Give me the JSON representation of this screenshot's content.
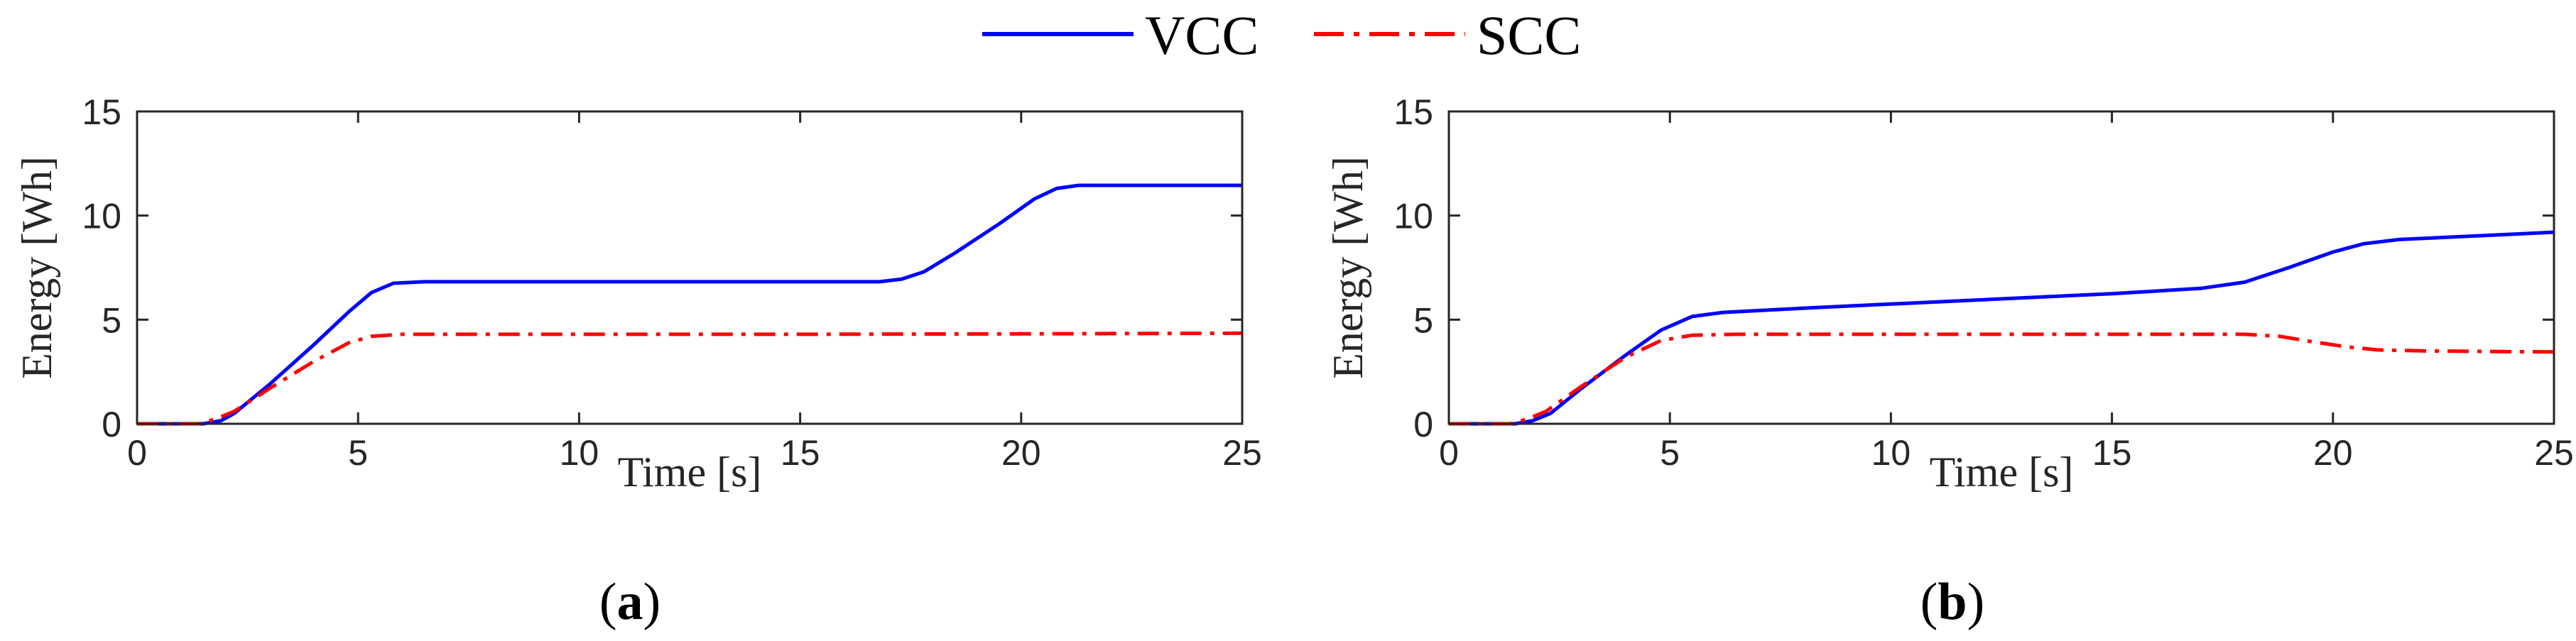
{
  "legend": {
    "entries": [
      {
        "name": "VCC",
        "color": "#0000ff",
        "style": "solid"
      },
      {
        "name": "SCC",
        "color": "#ff0000",
        "style": "dashdot"
      }
    ]
  },
  "captions": {
    "a_open": "(",
    "a_letter": "a",
    "a_close": ")",
    "b_open": "(",
    "b_letter": "b",
    "b_close": ")"
  },
  "chart_data": [
    {
      "type": "line",
      "panel": "a",
      "title": "",
      "xlabel": "Time [s]",
      "ylabel": "Energy [Wh]",
      "xlim": [
        0,
        25
      ],
      "ylim": [
        0,
        15
      ],
      "xticks": [
        0,
        5,
        10,
        15,
        20,
        25
      ],
      "yticks": [
        0,
        5,
        10,
        15
      ],
      "grid": false,
      "series": [
        {
          "name": "VCC",
          "color": "#0000ff",
          "style": "solid",
          "points": [
            [
              0,
              0
            ],
            [
              1.5,
              0
            ],
            [
              1.9,
              0.15
            ],
            [
              2.2,
              0.5
            ],
            [
              3,
              1.9
            ],
            [
              4,
              3.8
            ],
            [
              4.8,
              5.4
            ],
            [
              5.3,
              6.3
            ],
            [
              5.8,
              6.75
            ],
            [
              6.5,
              6.82
            ],
            [
              10,
              6.82
            ],
            [
              15,
              6.82
            ],
            [
              16.8,
              6.82
            ],
            [
              17.3,
              6.95
            ],
            [
              17.8,
              7.3
            ],
            [
              18.5,
              8.2
            ],
            [
              19.5,
              9.6
            ],
            [
              20.3,
              10.8
            ],
            [
              20.8,
              11.3
            ],
            [
              21.3,
              11.45
            ],
            [
              22,
              11.45
            ],
            [
              25,
              11.45
            ]
          ]
        },
        {
          "name": "SCC",
          "color": "#ff0000",
          "style": "dashdot",
          "points": [
            [
              0,
              0
            ],
            [
              1.4,
              0
            ],
            [
              1.8,
              0.25
            ],
            [
              2.2,
              0.6
            ],
            [
              3,
              1.7
            ],
            [
              4,
              3.0
            ],
            [
              4.8,
              3.9
            ],
            [
              5.3,
              4.2
            ],
            [
              6,
              4.3
            ],
            [
              10,
              4.3
            ],
            [
              15,
              4.3
            ],
            [
              20,
              4.32
            ],
            [
              25,
              4.35
            ]
          ]
        }
      ]
    },
    {
      "type": "line",
      "panel": "b",
      "title": "",
      "xlabel": "Time [s]",
      "ylabel": "Energy [Wh]",
      "xlim": [
        0,
        25
      ],
      "ylim": [
        0,
        15
      ],
      "xticks": [
        0,
        5,
        10,
        15,
        20,
        25
      ],
      "yticks": [
        0,
        5,
        10,
        15
      ],
      "grid": false,
      "series": [
        {
          "name": "VCC",
          "color": "#0000ff",
          "style": "solid",
          "points": [
            [
              0,
              0
            ],
            [
              1.5,
              0
            ],
            [
              1.9,
              0.15
            ],
            [
              2.3,
              0.5
            ],
            [
              3,
              1.7
            ],
            [
              4,
              3.3
            ],
            [
              4.8,
              4.5
            ],
            [
              5.5,
              5.15
            ],
            [
              6.2,
              5.35
            ],
            [
              8,
              5.55
            ],
            [
              10,
              5.75
            ],
            [
              12,
              5.95
            ],
            [
              15,
              6.25
            ],
            [
              17,
              6.5
            ],
            [
              18,
              6.8
            ],
            [
              19,
              7.5
            ],
            [
              20,
              8.25
            ],
            [
              20.7,
              8.65
            ],
            [
              21.5,
              8.85
            ],
            [
              23,
              9.0
            ],
            [
              25,
              9.2
            ]
          ]
        },
        {
          "name": "SCC",
          "color": "#ff0000",
          "style": "dashdot",
          "points": [
            [
              0,
              0
            ],
            [
              1.4,
              0
            ],
            [
              1.8,
              0.25
            ],
            [
              2.2,
              0.6
            ],
            [
              3,
              1.8
            ],
            [
              4,
              3.2
            ],
            [
              4.8,
              4.0
            ],
            [
              5.5,
              4.25
            ],
            [
              6.5,
              4.3
            ],
            [
              10,
              4.3
            ],
            [
              15,
              4.3
            ],
            [
              18,
              4.3
            ],
            [
              18.8,
              4.2
            ],
            [
              19.5,
              3.95
            ],
            [
              20.3,
              3.7
            ],
            [
              21,
              3.55
            ],
            [
              22,
              3.5
            ],
            [
              25,
              3.45
            ]
          ]
        }
      ]
    }
  ]
}
